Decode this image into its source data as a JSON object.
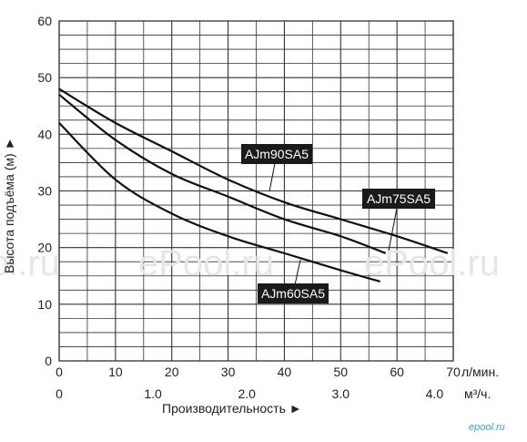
{
  "chart_data": {
    "type": "line",
    "title": "",
    "ylabel": "Высота подъёма (м) ►",
    "xlabel": "Производительность ►",
    "x_unit_top": "л/мин.",
    "x_unit_bottom": "м³/ч.",
    "ylim": [
      0,
      60
    ],
    "xlim": [
      0,
      70
    ],
    "y_ticks": [
      "0",
      "10",
      "20",
      "30",
      "40",
      "50",
      "60"
    ],
    "x_ticks_lmin": [
      "0",
      "10",
      "20",
      "30",
      "40",
      "50",
      "60",
      "70"
    ],
    "x_ticks_m3h": [
      {
        "label": "0",
        "value": 0
      },
      {
        "label": "1.0",
        "value": 1.0
      },
      {
        "label": "2.0",
        "value": 2.0
      },
      {
        "label": "3.0",
        "value": 3.0
      },
      {
        "label": "4.0",
        "value": 4.0
      }
    ],
    "grid": true,
    "series": [
      {
        "name": "AJm90SA5",
        "x": [
          0,
          10,
          20,
          30,
          40,
          50,
          60,
          69
        ],
        "y": [
          48,
          42,
          37,
          32,
          28,
          25,
          22,
          19
        ]
      },
      {
        "name": "AJm75SA5",
        "x": [
          0,
          10,
          20,
          30,
          40,
          50,
          58
        ],
        "y": [
          47,
          39,
          33,
          29,
          25,
          22,
          19
        ]
      },
      {
        "name": "AJm60SA5",
        "x": [
          0,
          10,
          20,
          30,
          40,
          50,
          57
        ],
        "y": [
          42,
          32,
          26,
          22,
          19,
          16,
          14
        ]
      }
    ]
  },
  "watermarks": [
    "ol.ru",
    "ePool.ru",
    "ePool.ru"
  ],
  "brand": "epool.ru",
  "colors": {
    "grid": "#333333",
    "line": "#111111",
    "label_bg": "#1a1a1a",
    "watermark": "#e6e6e6",
    "brand": "#3aa0c8"
  }
}
